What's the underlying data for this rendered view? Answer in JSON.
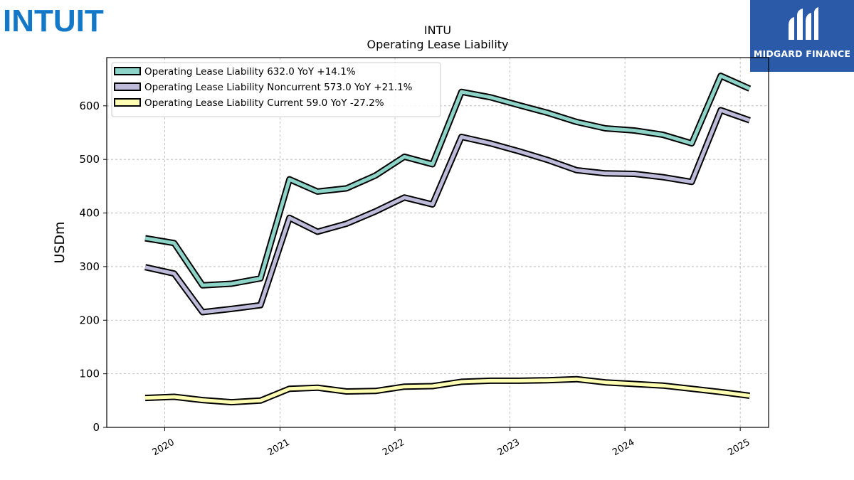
{
  "brand": {
    "left_logo_text": "INTUIT",
    "right_logo_text": "MIDGARD FINANCE",
    "left_color": "#1478c8",
    "right_bg": "#2a5aa8"
  },
  "chart_data": {
    "type": "line",
    "title": "INTU",
    "subtitle": "Operating Lease Liability",
    "ylabel": "USDm",
    "xlabel": "",
    "ylim": [
      0,
      690
    ],
    "xlim": [
      "2019-07-01",
      "2025-04-01"
    ],
    "yticks": [
      0,
      100,
      200,
      300,
      400,
      500,
      600
    ],
    "xticks": [
      {
        "date": "2020-01-01",
        "label": "2020"
      },
      {
        "date": "2021-01-01",
        "label": "2021"
      },
      {
        "date": "2022-01-01",
        "label": "2022"
      },
      {
        "date": "2023-01-01",
        "label": "2023"
      },
      {
        "date": "2024-01-01",
        "label": "2024"
      },
      {
        "date": "2025-01-01",
        "label": "2025"
      }
    ],
    "grid": true,
    "legend_position": "top-left",
    "x": [
      "2019-10-31",
      "2020-01-31",
      "2020-04-30",
      "2020-07-31",
      "2020-10-31",
      "2021-01-31",
      "2021-04-30",
      "2021-07-31",
      "2021-10-31",
      "2022-01-31",
      "2022-04-30",
      "2022-07-31",
      "2022-10-31",
      "2023-01-31",
      "2023-04-30",
      "2023-07-31",
      "2023-10-31",
      "2024-01-31",
      "2024-04-30",
      "2024-07-31",
      "2024-10-31",
      "2025-01-31"
    ],
    "series": [
      {
        "name": "Operating Lease Liability",
        "legend_label": "Operating Lease Liability  632.0 YoY +14.1%",
        "color": "#8dd3c7",
        "values": [
          353,
          344,
          265,
          268,
          278,
          463,
          440,
          446,
          470,
          505,
          491,
          626,
          616,
          601,
          587,
          570,
          558,
          554,
          546,
          530,
          656,
          632
        ]
      },
      {
        "name": "Operating Lease Liability Noncurrent",
        "legend_label": "Operating Lease Liability Noncurrent  573.0 YoY +21.1%",
        "color": "#bebada",
        "values": [
          299,
          287,
          215,
          221,
          228,
          391,
          365,
          380,
          403,
          429,
          416,
          542,
          530,
          515,
          499,
          480,
          474,
          473,
          467,
          458,
          592,
          573
        ]
      },
      {
        "name": "Operating Lease Liability Current",
        "legend_label": "Operating Lease Liability Current  59.0 YoY -27.2%",
        "color": "#ffffb3",
        "values": [
          55,
          57,
          51,
          47,
          50,
          72,
          74,
          67,
          68,
          76,
          77,
          85,
          87,
          87,
          88,
          90,
          84,
          81,
          78,
          72,
          66,
          59
        ]
      }
    ]
  }
}
